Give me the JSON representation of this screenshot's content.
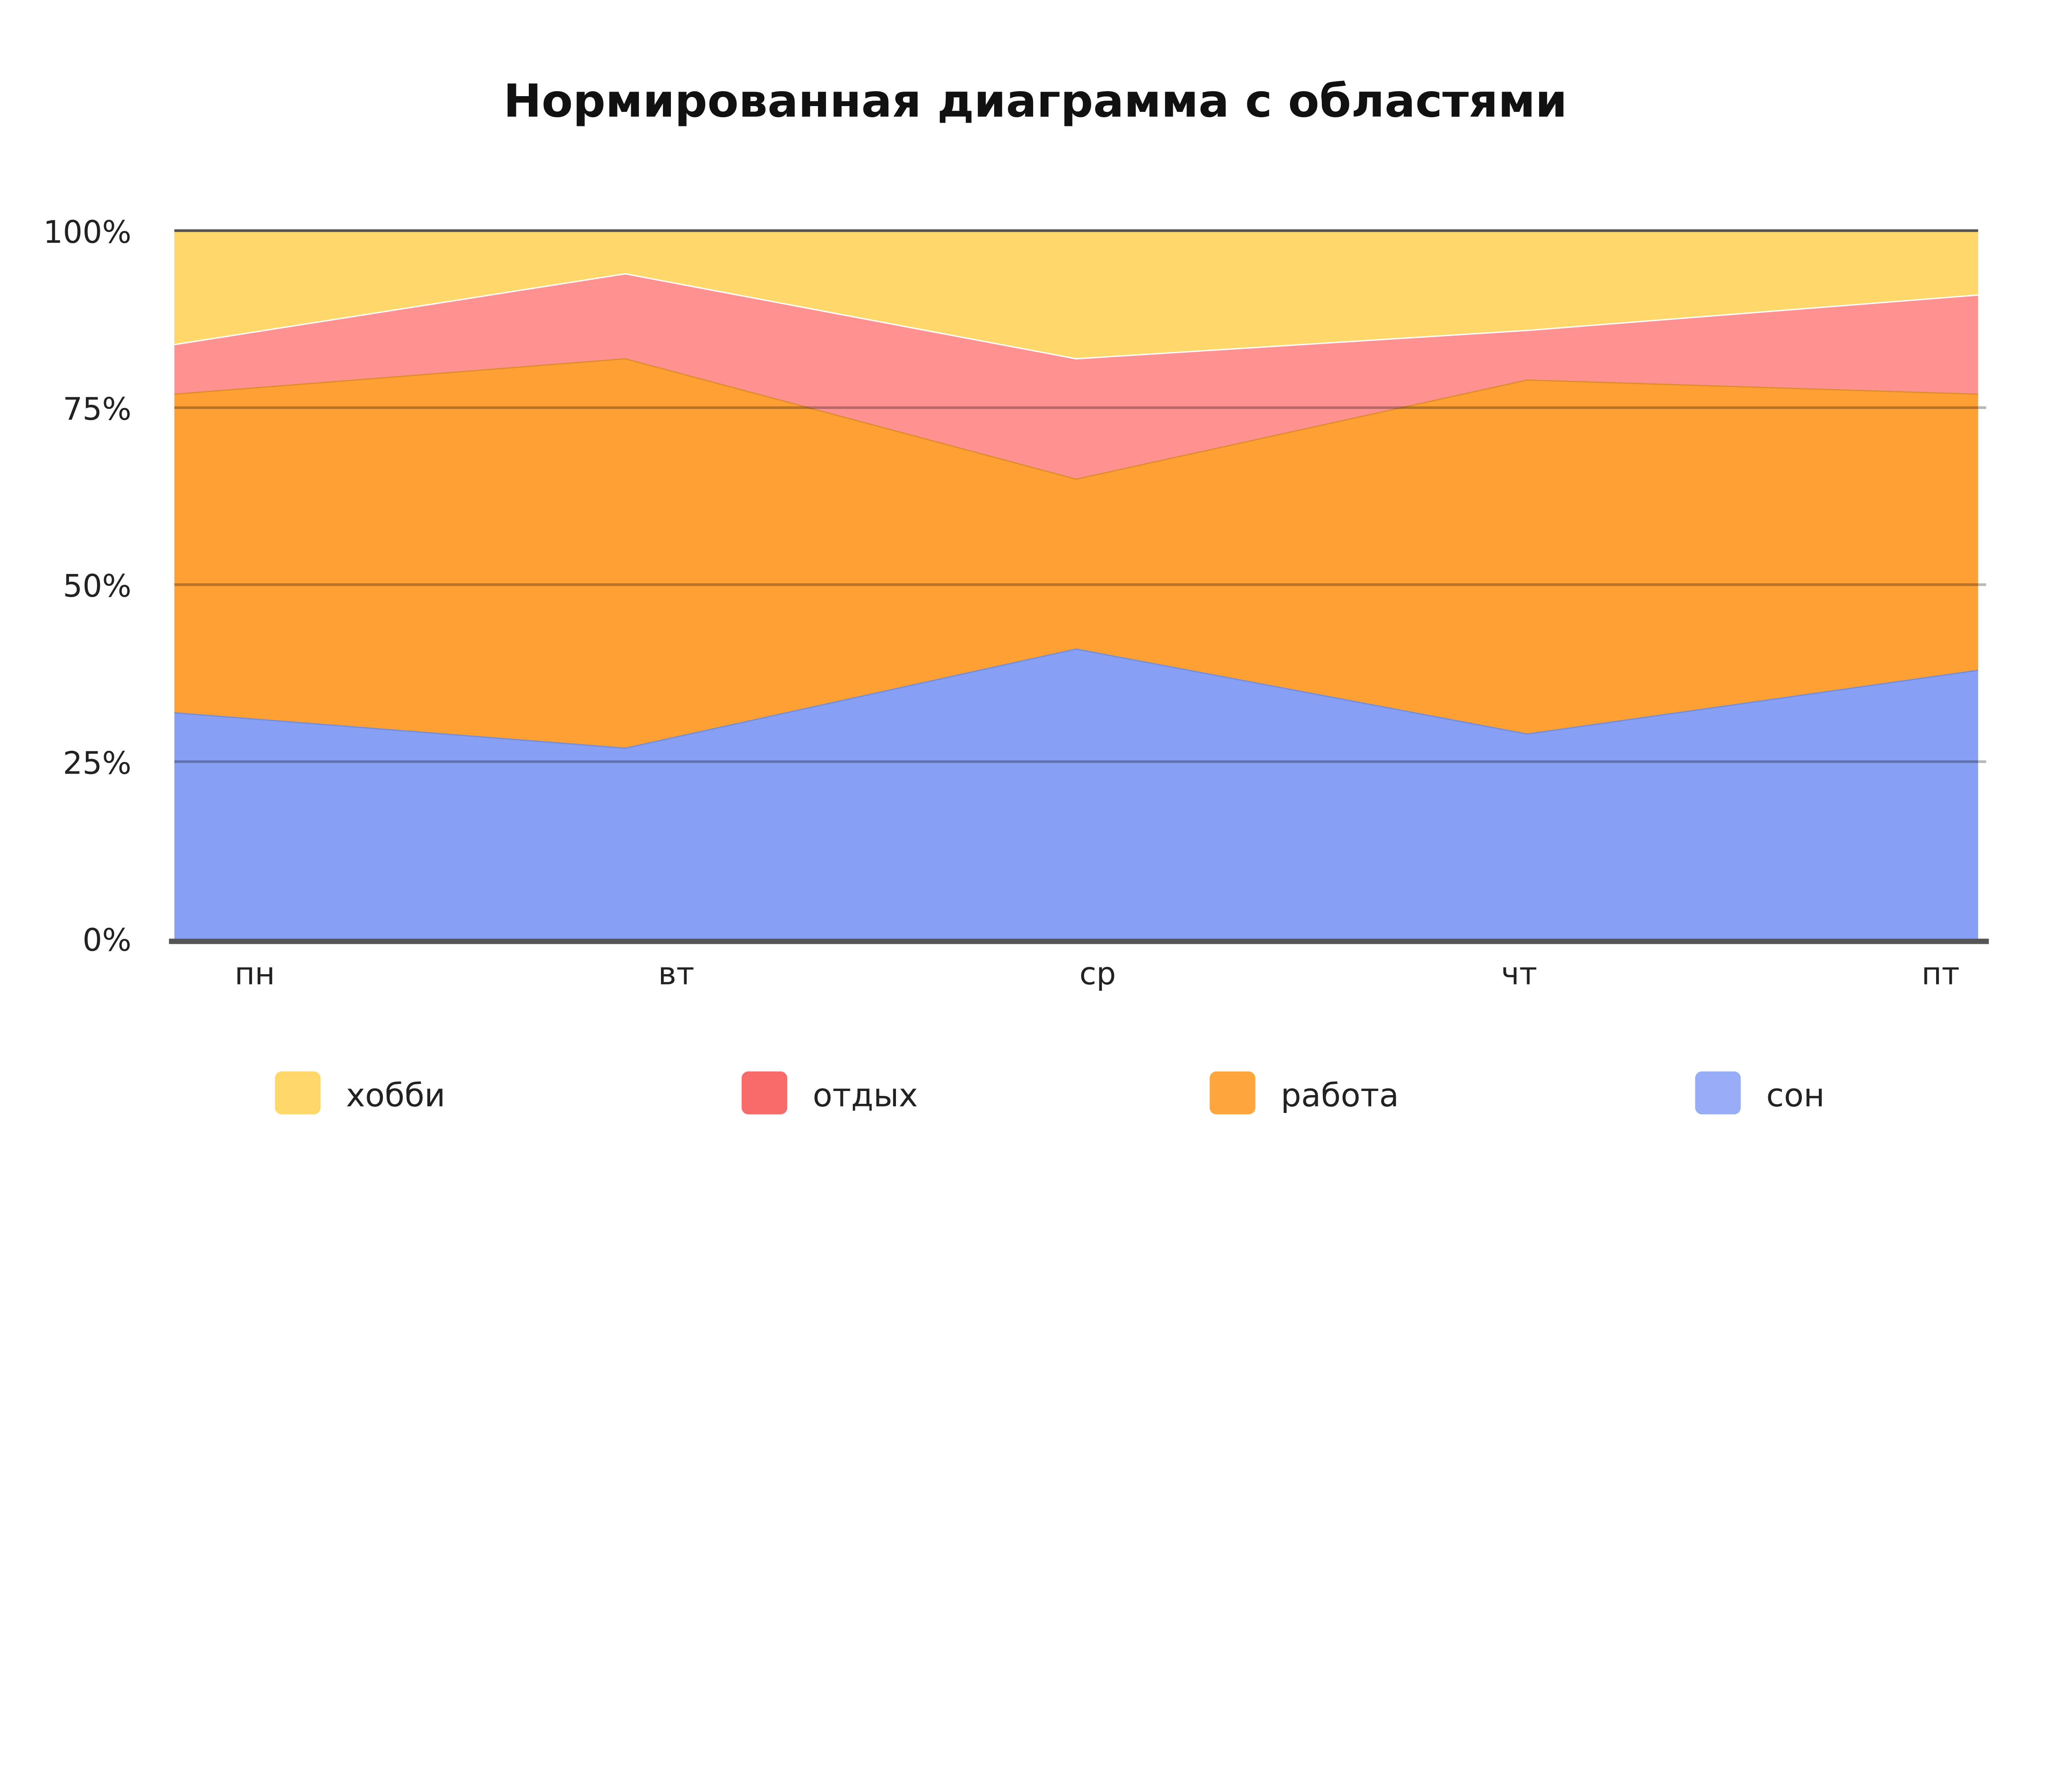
{
  "chart_data": {
    "type": "area",
    "stacked": "normalized",
    "title": "Нормированная диаграмма с областями",
    "categories": [
      "пн",
      "вт",
      "ср",
      "чт",
      "пт"
    ],
    "y_ticks": [
      "0%",
      "25%",
      "50%",
      "75%",
      "100%"
    ],
    "ylim": [
      0,
      100
    ],
    "grid": true,
    "legend_position": "bottom",
    "series": [
      {
        "name": "сон",
        "values": [
          32,
          27,
          41,
          29,
          38
        ],
        "color": "#87A0F3",
        "legend_color": "#97AEF7"
      },
      {
        "name": "работа",
        "values": [
          45,
          55,
          24,
          50,
          39
        ],
        "color": "#FFA035",
        "legend_color": "#FFA53E"
      },
      {
        "name": "отдых",
        "values": [
          7,
          12,
          17,
          7,
          14
        ],
        "color": "#FF9290",
        "legend_color": "#F76A6A"
      },
      {
        "name": "хобби",
        "values": [
          16,
          6,
          18,
          14,
          9
        ],
        "color": "#FED86A",
        "legend_color": "#FED86A"
      }
    ],
    "legend_order": [
      "хобби",
      "отдых",
      "работа",
      "сон"
    ]
  }
}
